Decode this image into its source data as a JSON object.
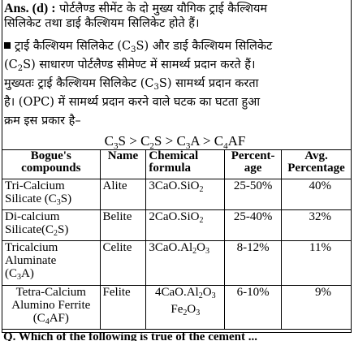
{
  "answer": {
    "label": "Ans. (d) :",
    "line1": "पोर्टलैण्ड सीमेंट के दो मुख्य यौगिक ट्राई कैल्शियम",
    "line2": "सिलिकेट तथा डाई कैल्शियम सिलिकेट होते हैं।"
  },
  "explanation": {
    "line1_pre": "ट्राई कैल्शियम सिलिकेट (C",
    "line1_sub": "3",
    "line1_post": "S) और डाई कैल्शियम सिलिकेट",
    "line2_pre": "(C",
    "line2_sub": "2",
    "line2_post": "S) साधारण पोर्टलैण्ड सीमेण्ट में सामर्थ्य प्रदान करते हैं।",
    "line3_pre": "मुख्यतः ट्राई कैल्शियम सिलिकेट (C",
    "line3_sub": "3",
    "line3_post": "S) सामर्थ्य प्रदान करता",
    "line4": "है। (OPC) में सामर्थ्य प्रदान करने वाले घटक का घटता हुआ",
    "line5": "क्रम इस प्रकार है–"
  },
  "order": {
    "c3s_a": "C",
    "c3s_sub": "3",
    "c3s_b": "S",
    "gt": ">",
    "c2s_a": "C",
    "c2s_sub": "2",
    "c2s_b": "S",
    "c3a_a": "C",
    "c3a_sub": "3",
    "c3a_b": "A",
    "c4af_a": "C",
    "c4af_sub": "4",
    "c4af_b": "AF"
  },
  "table": {
    "headers": {
      "compounds_1": "Bogue's",
      "compounds_2": "compounds",
      "name": "Name",
      "formula_1": "Chemical",
      "formula_2": "formula",
      "percent_1": "Percent-",
      "percent_2": "age",
      "avg_1": "Avg.",
      "avg_2": "Percentage"
    },
    "rows": [
      {
        "compound_1": "Tri-Calcium",
        "compound_2a": "Silicate (C",
        "compound_2sub": "3",
        "compound_2b": "S)",
        "name": "Alite",
        "formula_a": "3CaO.SiO",
        "formula_sub": "2",
        "percentage": "25-50%",
        "avg": "40%"
      },
      {
        "compound_1": "Di-calcium",
        "compound_2a": "Silicate(C",
        "compound_2sub": "2",
        "compound_2b": "S)",
        "name": "Belite",
        "formula_a": "2CaO.SiO",
        "formula_sub": "2",
        "percentage": "25-40%",
        "avg": "32%"
      },
      {
        "compound_1": "Tricalcium",
        "compound_2": "Aluminate",
        "compound_3a": "(C",
        "compound_3sub": "3",
        "compound_3b": "A)",
        "name": "Celite",
        "formula_a": "3CaO.Al",
        "formula_sub1": "2",
        "formula_b": "O",
        "formula_sub2": "3",
        "percentage": "8-12%",
        "avg": "11%"
      },
      {
        "compound_1": "Tetra-Calcium",
        "compound_2": "Alumino Ferrite",
        "compound_3a": "(C",
        "compound_3sub": "4",
        "compound_3b": "AF)",
        "name": "Felite",
        "formula_a": "4CaO.Al",
        "formula_sub1": "2",
        "formula_b": "O",
        "formula_sub2": "3",
        "formula2_a": "Fe",
        "formula2_sub1": "2",
        "formula2_b": "O",
        "formula2_sub2": "3",
        "percentage": "6-10%",
        "avg": "9%"
      }
    ]
  },
  "footer_cut": "Q. Which of the following is true of the cement ..."
}
